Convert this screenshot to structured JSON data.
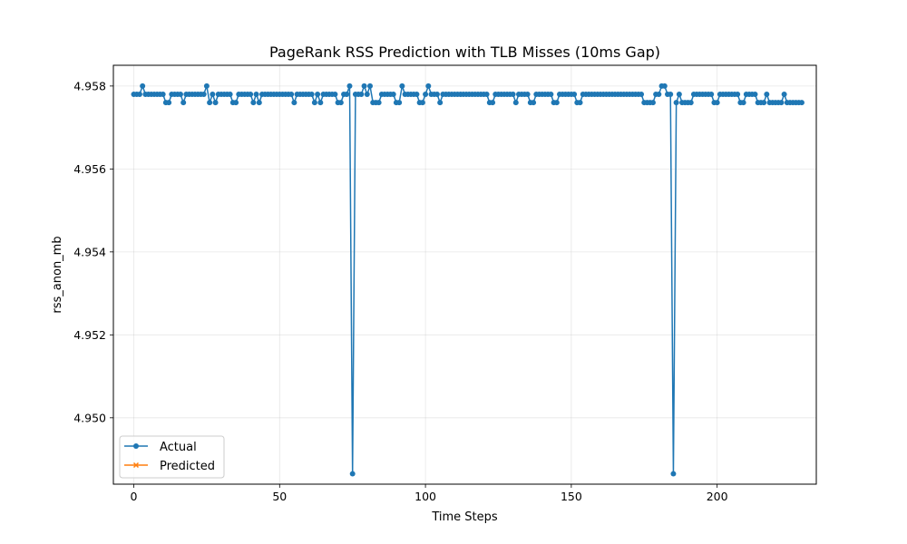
{
  "chart_data": {
    "type": "line",
    "title": "PageRank RSS Prediction with TLB Misses (10ms Gap)",
    "xlabel": "Time Steps",
    "ylabel": "rss_anon_mb",
    "xlim": [
      -7,
      234
    ],
    "ylim": [
      4.9484,
      4.9585
    ],
    "xticks": [
      0,
      50,
      100,
      150,
      200
    ],
    "yticks": [
      4.95,
      4.952,
      4.954,
      4.956,
      4.958
    ],
    "ytick_labels": [
      "4.950",
      "4.952",
      "4.954",
      "4.956",
      "4.958"
    ],
    "grid": true,
    "legend": {
      "position": "lower-left"
    },
    "series": [
      {
        "name": "Actual",
        "color": "#1f77b4",
        "marker": "circle",
        "x_start": 0,
        "y": [
          4.9578,
          4.9578,
          4.9578,
          4.958,
          4.9578,
          4.9578,
          4.9578,
          4.9578,
          4.9578,
          4.9578,
          4.9578,
          4.9576,
          4.9576,
          4.9578,
          4.9578,
          4.9578,
          4.9578,
          4.9576,
          4.9578,
          4.9578,
          4.9578,
          4.9578,
          4.9578,
          4.9578,
          4.9578,
          4.958,
          4.9576,
          4.9578,
          4.9576,
          4.9578,
          4.9578,
          4.9578,
          4.9578,
          4.9578,
          4.9576,
          4.9576,
          4.9578,
          4.9578,
          4.9578,
          4.9578,
          4.9578,
          4.9576,
          4.9578,
          4.9576,
          4.9578,
          4.9578,
          4.9578,
          4.9578,
          4.9578,
          4.9578,
          4.9578,
          4.9578,
          4.9578,
          4.9578,
          4.9578,
          4.9576,
          4.9578,
          4.9578,
          4.9578,
          4.9578,
          4.9578,
          4.9578,
          4.9576,
          4.9578,
          4.9576,
          4.9578,
          4.9578,
          4.9578,
          4.9578,
          4.9578,
          4.9576,
          4.9576,
          4.9578,
          4.9578,
          4.958,
          4.94865,
          4.9578,
          4.9578,
          4.9578,
          4.958,
          4.9578,
          4.958,
          4.9576,
          4.9576,
          4.9576,
          4.9578,
          4.9578,
          4.9578,
          4.9578,
          4.9578,
          4.9576,
          4.9576,
          4.958,
          4.9578,
          4.9578,
          4.9578,
          4.9578,
          4.9578,
          4.9576,
          4.9576,
          4.9578,
          4.958,
          4.9578,
          4.9578,
          4.9578,
          4.9576,
          4.9578,
          4.9578,
          4.9578,
          4.9578,
          4.9578,
          4.9578,
          4.9578,
          4.9578,
          4.9578,
          4.9578,
          4.9578,
          4.9578,
          4.9578,
          4.9578,
          4.9578,
          4.9578,
          4.9576,
          4.9576,
          4.9578,
          4.9578,
          4.9578,
          4.9578,
          4.9578,
          4.9578,
          4.9578,
          4.9576,
          4.9578,
          4.9578,
          4.9578,
          4.9578,
          4.9576,
          4.9576,
          4.9578,
          4.9578,
          4.9578,
          4.9578,
          4.9578,
          4.9578,
          4.9576,
          4.9576,
          4.9578,
          4.9578,
          4.9578,
          4.9578,
          4.9578,
          4.9578,
          4.9576,
          4.9576,
          4.9578,
          4.9578,
          4.9578,
          4.9578,
          4.9578,
          4.9578,
          4.9578,
          4.9578,
          4.9578,
          4.9578,
          4.9578,
          4.9578,
          4.9578,
          4.9578,
          4.9578,
          4.9578,
          4.9578,
          4.9578,
          4.9578,
          4.9578,
          4.9578,
          4.9576,
          4.9576,
          4.9576,
          4.9576,
          4.9578,
          4.9578,
          4.958,
          4.958,
          4.9578,
          4.9578,
          4.94865,
          4.9576,
          4.9578,
          4.9576,
          4.9576,
          4.9576,
          4.9576,
          4.9578,
          4.9578,
          4.9578,
          4.9578,
          4.9578,
          4.9578,
          4.9578,
          4.9576,
          4.9576,
          4.9578,
          4.9578,
          4.9578,
          4.9578,
          4.9578,
          4.9578,
          4.9578,
          4.9576,
          4.9576,
          4.9578,
          4.9578,
          4.9578,
          4.9578,
          4.9576,
          4.9576,
          4.9576,
          4.9578,
          4.9576,
          4.9576,
          4.9576,
          4.9576,
          4.9576,
          4.9578,
          4.9576,
          4.9576,
          4.9576,
          4.9576,
          4.9576,
          4.9576
        ]
      },
      {
        "name": "Predicted",
        "color": "#ff7f0e",
        "marker": "x",
        "y": []
      }
    ]
  }
}
